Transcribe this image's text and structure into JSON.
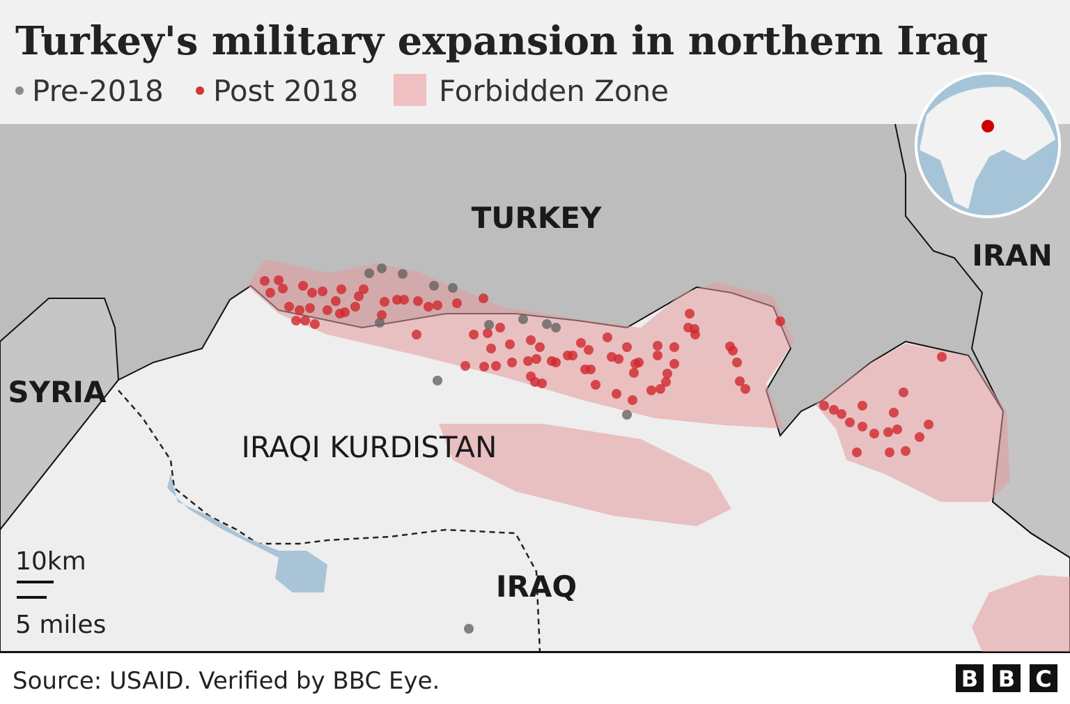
{
  "header": {
    "title": "Turkey's military expansion in northern Iraq",
    "legend": [
      {
        "label": "Pre-2018"
      },
      {
        "label": "Post 2018"
      },
      {
        "label": "Forbidden Zone"
      }
    ]
  },
  "map": {
    "labels": [
      "TURKEY",
      "IRAN",
      "SYRIA",
      "IRAQI KURDISTAN",
      "IRAQ"
    ],
    "scale": [
      "10km",
      "5 miles"
    ]
  },
  "footer": {
    "source": "Source: USAID. Verified by BBC Eye.",
    "logo": [
      "B",
      "B",
      "C"
    ]
  }
}
